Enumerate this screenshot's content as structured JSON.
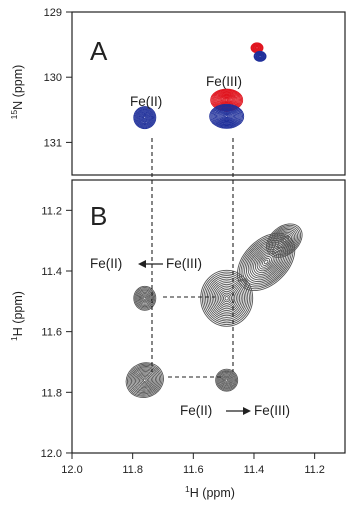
{
  "chart_data": [
    {
      "type": "contour",
      "panel_label": "A",
      "xlim": [
        12.0,
        11.1
      ],
      "ylim": [
        129.0,
        131.5
      ],
      "y_ticks": [
        129,
        130,
        131
      ],
      "ylabel_sup": "15",
      "ylabel_main": "N  (ppm)",
      "series": [
        {
          "color": "#1f2f9a",
          "peaks": [
            {
              "x": 11.76,
              "y": 130.62,
              "size": 1.0,
              "label": "Fe(II)"
            },
            {
              "x": 11.49,
              "y": 130.6,
              "size": 1.5
            },
            {
              "x": 11.38,
              "y": 129.68,
              "size": 0.5
            }
          ]
        },
        {
          "color": "#e0141e",
          "peaks": [
            {
              "x": 11.49,
              "y": 130.35,
              "size": 1.5,
              "label": "Fe(III)"
            },
            {
              "x": 11.39,
              "y": 129.55,
              "size": 0.5
            }
          ]
        }
      ]
    },
    {
      "type": "contour",
      "panel_label": "B",
      "xlim": [
        12.0,
        11.1
      ],
      "ylim": [
        11.1,
        12.0
      ],
      "x_ticks": [
        "12.0",
        "11.8",
        "11.6",
        "11.4",
        "11.2"
      ],
      "y_ticks": [
        "11.2",
        "11.4",
        "11.6",
        "11.8",
        "12.0"
      ],
      "xlabel_sup": "1",
      "xlabel_main": "H  (ppm)",
      "ylabel_sup": "1",
      "ylabel_main": "H  (ppm)",
      "color": "#555555",
      "peaks": [
        {
          "x": 11.49,
          "y": 11.49,
          "size": 1.6
        },
        {
          "x": 11.76,
          "y": 11.76,
          "size": 1.3
        },
        {
          "x": 11.76,
          "y": 11.49,
          "size": 0.7
        },
        {
          "x": 11.49,
          "y": 11.76,
          "size": 0.7
        },
        {
          "x": 11.36,
          "y": 11.37,
          "size": 1.6
        },
        {
          "x": 11.3,
          "y": 11.3,
          "size": 1.0
        }
      ],
      "annotations": {
        "upper_left": "Fe(II)",
        "upper_right": "Fe(III)",
        "lower_left": "Fe(II)",
        "lower_right": "Fe(III)"
      }
    }
  ]
}
